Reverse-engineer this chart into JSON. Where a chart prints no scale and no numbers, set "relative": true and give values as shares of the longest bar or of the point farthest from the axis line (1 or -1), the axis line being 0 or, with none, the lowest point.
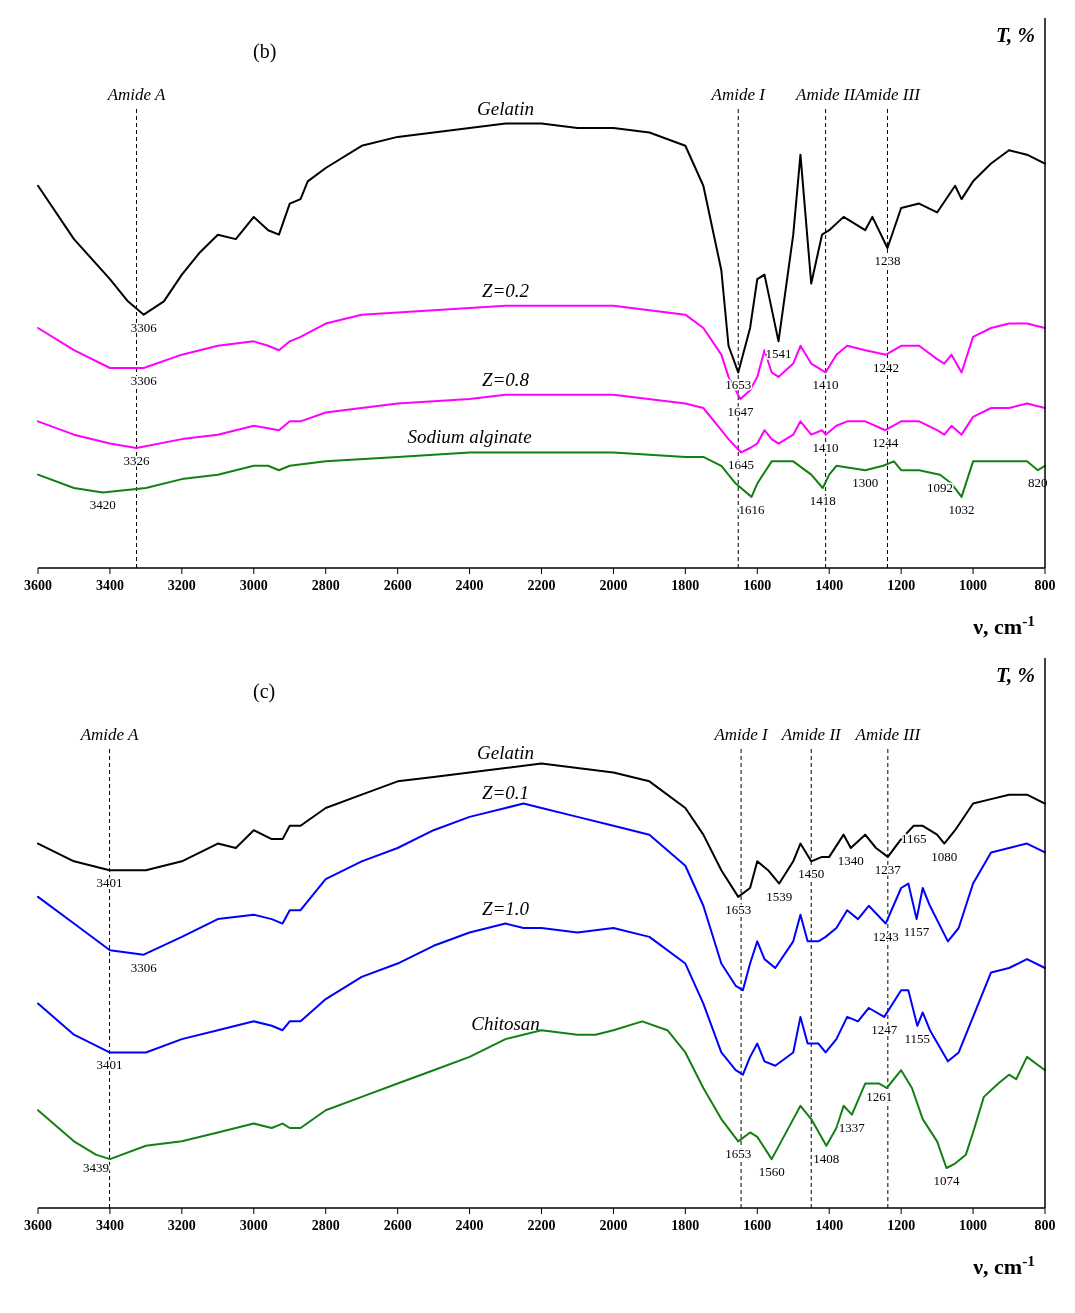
{
  "chart_data": [
    {
      "type": "line",
      "title": "(b)",
      "xlabel": "ν, cm$^{-1}$",
      "ylabel": "T, %",
      "relative": true,
      "xlim": [
        3600,
        800
      ],
      "xticks": [
        3600,
        3400,
        3200,
        3000,
        2800,
        2600,
        2400,
        2200,
        2000,
        1800,
        1600,
        1400,
        1200,
        1000,
        800
      ],
      "series": [
        {
          "name": "Gelatin",
          "color": "#000000",
          "x": [
            3600,
            3500,
            3400,
            3350,
            3306,
            3250,
            3200,
            3150,
            3100,
            3050,
            3000,
            2960,
            2930,
            2900,
            2870,
            2850,
            2800,
            2700,
            2600,
            2500,
            2400,
            2300,
            2200,
            2100,
            2000,
            1900,
            1800,
            1750,
            1700,
            1680,
            1653,
            1620,
            1600,
            1580,
            1541,
            1500,
            1480,
            1450,
            1420,
            1400,
            1360,
            1300,
            1280,
            1238,
            1200,
            1150,
            1100,
            1050,
            1032,
            1000,
            950,
            900,
            850,
            800
          ],
          "values": [
            0.86,
            0.74,
            0.65,
            0.6,
            0.57,
            0.6,
            0.66,
            0.71,
            0.75,
            0.74,
            0.79,
            0.76,
            0.75,
            0.82,
            0.83,
            0.87,
            0.9,
            0.95,
            0.97,
            0.98,
            0.99,
            1.0,
            1.0,
            0.99,
            0.99,
            0.98,
            0.95,
            0.86,
            0.67,
            0.5,
            0.44,
            0.54,
            0.65,
            0.66,
            0.51,
            0.75,
            0.93,
            0.64,
            0.75,
            0.76,
            0.79,
            0.76,
            0.79,
            0.72,
            0.81,
            0.82,
            0.8,
            0.86,
            0.83,
            0.87,
            0.91,
            0.94,
            0.93,
            0.91
          ]
        },
        {
          "name": "Z=0.2",
          "color": "#ff00ff",
          "x": [
            3600,
            3500,
            3400,
            3306,
            3200,
            3100,
            3000,
            2960,
            2930,
            2900,
            2870,
            2800,
            2700,
            2500,
            2300,
            2000,
            1800,
            1750,
            1700,
            1680,
            1647,
            1620,
            1600,
            1580,
            1560,
            1541,
            1500,
            1480,
            1450,
            1410,
            1380,
            1350,
            1300,
            1242,
            1200,
            1150,
            1100,
            1080,
            1060,
            1032,
            1000,
            950,
            900,
            850,
            800
          ],
          "values": [
            0.54,
            0.49,
            0.45,
            0.45,
            0.48,
            0.5,
            0.51,
            0.5,
            0.49,
            0.51,
            0.52,
            0.55,
            0.57,
            0.58,
            0.59,
            0.59,
            0.57,
            0.54,
            0.48,
            0.43,
            0.38,
            0.4,
            0.43,
            0.49,
            0.44,
            0.43,
            0.46,
            0.5,
            0.46,
            0.44,
            0.48,
            0.5,
            0.49,
            0.48,
            0.5,
            0.5,
            0.47,
            0.46,
            0.48,
            0.44,
            0.52,
            0.54,
            0.55,
            0.55,
            0.54
          ]
        },
        {
          "name": "Z=0.8",
          "color": "#ff00ff",
          "x": [
            3600,
            3500,
            3400,
            3326,
            3200,
            3100,
            3000,
            2930,
            2900,
            2870,
            2800,
            2600,
            2400,
            2300,
            2000,
            1800,
            1750,
            1700,
            1680,
            1645,
            1620,
            1600,
            1580,
            1560,
            1541,
            1500,
            1480,
            1450,
            1420,
            1410,
            1380,
            1350,
            1300,
            1244,
            1200,
            1150,
            1100,
            1080,
            1060,
            1032,
            1000,
            950,
            900,
            850,
            800
          ],
          "values": [
            0.33,
            0.3,
            0.28,
            0.27,
            0.29,
            0.3,
            0.32,
            0.31,
            0.33,
            0.33,
            0.35,
            0.37,
            0.38,
            0.39,
            0.39,
            0.37,
            0.36,
            0.31,
            0.29,
            0.26,
            0.27,
            0.28,
            0.31,
            0.29,
            0.28,
            0.3,
            0.33,
            0.3,
            0.31,
            0.3,
            0.32,
            0.33,
            0.33,
            0.31,
            0.33,
            0.33,
            0.31,
            0.3,
            0.32,
            0.3,
            0.34,
            0.36,
            0.36,
            0.37,
            0.36
          ]
        },
        {
          "name": "Sodium alginate",
          "color": "#138013",
          "x": [
            3600,
            3500,
            3420,
            3300,
            3200,
            3100,
            3000,
            2960,
            2930,
            2900,
            2800,
            2600,
            2400,
            2200,
            2000,
            1800,
            1750,
            1700,
            1660,
            1616,
            1600,
            1560,
            1500,
            1450,
            1418,
            1400,
            1380,
            1300,
            1250,
            1220,
            1200,
            1150,
            1092,
            1060,
            1032,
            1000,
            950,
            900,
            850,
            820,
            800
          ],
          "values": [
            0.21,
            0.18,
            0.17,
            0.18,
            0.2,
            0.21,
            0.23,
            0.23,
            0.22,
            0.23,
            0.24,
            0.25,
            0.26,
            0.26,
            0.26,
            0.25,
            0.25,
            0.23,
            0.19,
            0.16,
            0.19,
            0.24,
            0.24,
            0.21,
            0.18,
            0.21,
            0.23,
            0.22,
            0.23,
            0.24,
            0.22,
            0.22,
            0.21,
            0.19,
            0.16,
            0.24,
            0.24,
            0.24,
            0.24,
            0.22,
            0.23
          ]
        }
      ],
      "ref_lines": [
        {
          "axis": "x",
          "value": 3326,
          "label": "Amide A",
          "line_style": "dashed"
        },
        {
          "axis": "x",
          "value": 1653,
          "label": "Amide I",
          "line_style": "dashed"
        },
        {
          "axis": "x",
          "value": 1410,
          "label": "Amide II",
          "line_style": "dashed"
        },
        {
          "axis": "x",
          "value": 1238,
          "label": "Amide III",
          "line_style": "dashed"
        }
      ],
      "annotations": [
        {
          "text": "3306",
          "x": 3306,
          "y": 0.57
        },
        {
          "text": "3306",
          "x": 3306,
          "y": 0.45
        },
        {
          "text": "3326",
          "x": 3326,
          "y": 0.27
        },
        {
          "text": "3420",
          "x": 3420,
          "y": 0.17
        },
        {
          "text": "1653",
          "x": 1653,
          "y": 0.44
        },
        {
          "text": "1541",
          "x": 1541,
          "y": 0.51
        },
        {
          "text": "1647",
          "x": 1647,
          "y": 0.38
        },
        {
          "text": "1645",
          "x": 1645,
          "y": 0.26
        },
        {
          "text": "1616",
          "x": 1616,
          "y": 0.16
        },
        {
          "text": "1410",
          "x": 1410,
          "y": 0.44
        },
        {
          "text": "1410",
          "x": 1410,
          "y": 0.3
        },
        {
          "text": "1418",
          "x": 1418,
          "y": 0.18
        },
        {
          "text": "1238",
          "x": 1238,
          "y": 0.72
        },
        {
          "text": "1242",
          "x": 1242,
          "y": 0.48
        },
        {
          "text": "1244",
          "x": 1244,
          "y": 0.31
        },
        {
          "text": "1300",
          "x": 1300,
          "y": 0.22
        },
        {
          "text": "1092",
          "x": 1092,
          "y": 0.21
        },
        {
          "text": "1032",
          "x": 1032,
          "y": 0.16
        },
        {
          "text": "820",
          "x": 820,
          "y": 0.22
        }
      ]
    },
    {
      "type": "line",
      "title": "(c)",
      "xlabel": "ν, cm$^{-1}$",
      "ylabel": "T, %",
      "relative": true,
      "xlim": [
        3600,
        800
      ],
      "xticks": [
        3600,
        3400,
        3200,
        3000,
        2800,
        2600,
        2400,
        2200,
        2000,
        1800,
        1600,
        1400,
        1200,
        1000,
        800
      ],
      "series": [
        {
          "name": "Gelatin",
          "color": "#000000",
          "x": [
            3600,
            3500,
            3401,
            3300,
            3200,
            3100,
            3050,
            3000,
            2950,
            2920,
            2900,
            2870,
            2800,
            2700,
            2600,
            2500,
            2400,
            2300,
            2200,
            2100,
            2000,
            1900,
            1800,
            1750,
            1700,
            1653,
            1620,
            1600,
            1570,
            1539,
            1500,
            1480,
            1450,
            1420,
            1400,
            1360,
            1340,
            1300,
            1270,
            1237,
            1200,
            1165,
            1140,
            1100,
            1080,
            1050,
            1000,
            950,
            900,
            850,
            800
          ],
          "values": [
            0.82,
            0.78,
            0.76,
            0.76,
            0.78,
            0.82,
            0.81,
            0.85,
            0.83,
            0.83,
            0.86,
            0.86,
            0.9,
            0.93,
            0.96,
            0.97,
            0.98,
            0.99,
            1.0,
            0.99,
            0.98,
            0.96,
            0.9,
            0.84,
            0.76,
            0.7,
            0.72,
            0.78,
            0.76,
            0.73,
            0.78,
            0.82,
            0.78,
            0.79,
            0.79,
            0.84,
            0.81,
            0.84,
            0.81,
            0.79,
            0.83,
            0.86,
            0.86,
            0.84,
            0.82,
            0.85,
            0.91,
            0.92,
            0.93,
            0.93,
            0.91
          ]
        },
        {
          "name": "Z=0.1",
          "color": "#0000ff",
          "x": [
            3600,
            3500,
            3400,
            3306,
            3200,
            3100,
            3000,
            2950,
            2920,
            2900,
            2870,
            2800,
            2700,
            2600,
            2500,
            2400,
            2300,
            2250,
            2200,
            2100,
            2000,
            1900,
            1800,
            1750,
            1700,
            1660,
            1640,
            1620,
            1600,
            1580,
            1550,
            1500,
            1480,
            1460,
            1430,
            1410,
            1380,
            1350,
            1320,
            1290,
            1243,
            1200,
            1180,
            1157,
            1140,
            1120,
            1070,
            1040,
            1000,
            950,
            900,
            850,
            800
          ],
          "values": [
            0.7,
            0.64,
            0.58,
            0.57,
            0.61,
            0.65,
            0.66,
            0.65,
            0.64,
            0.67,
            0.67,
            0.74,
            0.78,
            0.81,
            0.85,
            0.88,
            0.9,
            0.91,
            0.9,
            0.88,
            0.86,
            0.84,
            0.77,
            0.68,
            0.55,
            0.5,
            0.49,
            0.55,
            0.6,
            0.56,
            0.54,
            0.6,
            0.66,
            0.6,
            0.6,
            0.61,
            0.63,
            0.67,
            0.65,
            0.68,
            0.64,
            0.72,
            0.73,
            0.65,
            0.72,
            0.68,
            0.6,
            0.63,
            0.73,
            0.8,
            0.81,
            0.82,
            0.8
          ]
        },
        {
          "name": "Z=1.0",
          "color": "#0000ff",
          "x": [
            3600,
            3500,
            3401,
            3300,
            3200,
            3100,
            3000,
            2950,
            2920,
            2900,
            2870,
            2800,
            2700,
            2600,
            2500,
            2400,
            2300,
            2250,
            2200,
            2100,
            2000,
            1900,
            1800,
            1750,
            1700,
            1660,
            1640,
            1620,
            1600,
            1580,
            1550,
            1500,
            1480,
            1460,
            1430,
            1410,
            1380,
            1350,
            1320,
            1290,
            1247,
            1200,
            1180,
            1155,
            1140,
            1120,
            1070,
            1040,
            1000,
            950,
            900,
            850,
            800
          ],
          "values": [
            0.46,
            0.39,
            0.35,
            0.35,
            0.38,
            0.4,
            0.42,
            0.41,
            0.4,
            0.42,
            0.42,
            0.47,
            0.52,
            0.55,
            0.59,
            0.62,
            0.64,
            0.63,
            0.63,
            0.62,
            0.63,
            0.61,
            0.55,
            0.46,
            0.35,
            0.31,
            0.3,
            0.34,
            0.37,
            0.33,
            0.32,
            0.35,
            0.43,
            0.37,
            0.37,
            0.35,
            0.38,
            0.43,
            0.42,
            0.45,
            0.43,
            0.49,
            0.49,
            0.41,
            0.44,
            0.4,
            0.33,
            0.35,
            0.43,
            0.53,
            0.54,
            0.56,
            0.54
          ]
        },
        {
          "name": "Chitosan",
          "color": "#138013",
          "x": [
            3600,
            3500,
            3439,
            3400,
            3300,
            3200,
            3100,
            3000,
            2950,
            2920,
            2900,
            2870,
            2800,
            2700,
            2600,
            2500,
            2400,
            2300,
            2200,
            2100,
            2050,
            2000,
            1920,
            1850,
            1800,
            1750,
            1700,
            1653,
            1620,
            1600,
            1560,
            1500,
            1480,
            1450,
            1408,
            1380,
            1360,
            1337,
            1300,
            1261,
            1240,
            1200,
            1170,
            1140,
            1100,
            1074,
            1050,
            1020,
            1000,
            970,
            930,
            900,
            880,
            850,
            800
          ],
          "values": [
            0.22,
            0.15,
            0.12,
            0.11,
            0.14,
            0.15,
            0.17,
            0.19,
            0.18,
            0.19,
            0.18,
            0.18,
            0.22,
            0.25,
            0.28,
            0.31,
            0.34,
            0.38,
            0.4,
            0.39,
            0.39,
            0.4,
            0.42,
            0.4,
            0.35,
            0.27,
            0.2,
            0.15,
            0.17,
            0.16,
            0.11,
            0.2,
            0.23,
            0.2,
            0.14,
            0.18,
            0.23,
            0.21,
            0.28,
            0.28,
            0.27,
            0.31,
            0.27,
            0.2,
            0.15,
            0.09,
            0.1,
            0.12,
            0.17,
            0.25,
            0.28,
            0.3,
            0.29,
            0.34,
            0.31
          ]
        }
      ],
      "ref_lines": [
        {
          "axis": "x",
          "value": 3401,
          "label": "Amide A",
          "line_style": "dashed"
        },
        {
          "axis": "x",
          "value": 1645,
          "label": "Amide I",
          "line_style": "dashed"
        },
        {
          "axis": "x",
          "value": 1450,
          "label": "Amide II",
          "line_style": "dashed"
        },
        {
          "axis": "x",
          "value": 1237,
          "label": "Amide III",
          "line_style": "dashed"
        }
      ],
      "annotations": [
        {
          "text": "3401",
          "x": 3401,
          "y": 0.76
        },
        {
          "text": "3306",
          "x": 3306,
          "y": 0.57
        },
        {
          "text": "3401",
          "x": 3401,
          "y": 0.35
        },
        {
          "text": "3439",
          "x": 3439,
          "y": 0.12
        },
        {
          "text": "1653",
          "x": 1653,
          "y": 0.7
        },
        {
          "text": "1539",
          "x": 1539,
          "y": 0.73
        },
        {
          "text": "1450",
          "x": 1450,
          "y": 0.78
        },
        {
          "text": "1340",
          "x": 1340,
          "y": 0.81
        },
        {
          "text": "1237",
          "x": 1237,
          "y": 0.79
        },
        {
          "text": "1165",
          "x": 1165,
          "y": 0.86
        },
        {
          "text": "1080",
          "x": 1080,
          "y": 0.82
        },
        {
          "text": "1243",
          "x": 1243,
          "y": 0.64
        },
        {
          "text": "1157",
          "x": 1157,
          "y": 0.65
        },
        {
          "text": "1247",
          "x": 1247,
          "y": 0.43
        },
        {
          "text": "1155",
          "x": 1155,
          "y": 0.41
        },
        {
          "text": "1261",
          "x": 1261,
          "y": 0.28
        },
        {
          "text": "1337",
          "x": 1337,
          "y": 0.21
        },
        {
          "text": "1653",
          "x": 1653,
          "y": 0.15
        },
        {
          "text": "1560",
          "x": 1560,
          "y": 0.11
        },
        {
          "text": "1408",
          "x": 1408,
          "y": 0.14
        },
        {
          "text": "1074",
          "x": 1074,
          "y": 0.09
        }
      ]
    }
  ]
}
